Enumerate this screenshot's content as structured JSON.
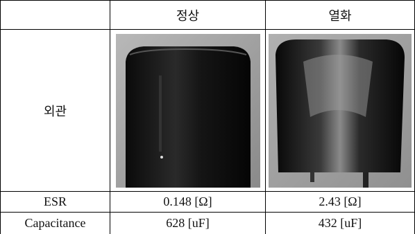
{
  "table": {
    "columns": [
      "정상",
      "열화"
    ],
    "rows": [
      [
        "외관"
      ],
      [
        "ESR",
        "0.148 [Ω]",
        "2.43 [Ω]"
      ],
      [
        "Capacitance",
        "628 [uF]",
        "432 [uF]"
      ]
    ]
  }
}
